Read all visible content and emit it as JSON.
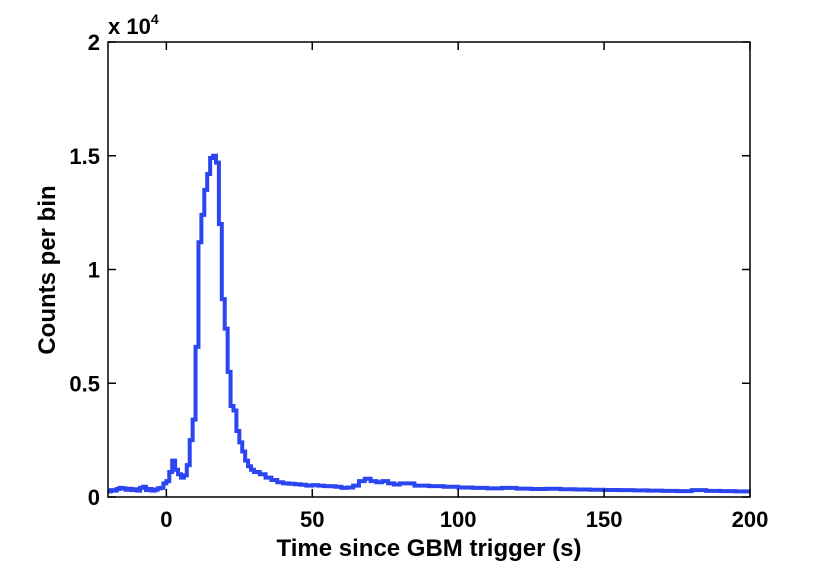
{
  "chart_data": {
    "type": "line",
    "style": "step",
    "xlabel": "Time since GBM trigger (s)",
    "ylabel": "Counts per bin",
    "xlim": [
      -20,
      200
    ],
    "ylim": [
      0,
      20000
    ],
    "x_ticks": [
      0,
      50,
      100,
      150,
      200
    ],
    "x_tick_labels": [
      "0",
      "50",
      "100",
      "150",
      "200"
    ],
    "y_ticks": [
      0,
      5000,
      10000,
      15000,
      20000
    ],
    "y_tick_labels": [
      "0",
      "0.5",
      "1",
      "1.5",
      "2"
    ],
    "y_multiplier": {
      "base": "x 10",
      "exponent": "4"
    },
    "grid": false,
    "series": [
      {
        "color": "#2b45f0",
        "x": [
          -20,
          -19,
          -18,
          -17,
          -16,
          -15,
          -14,
          -13,
          -12,
          -11,
          -10,
          -9,
          -8,
          -7,
          -6,
          -5,
          -4,
          -3,
          -2,
          -1,
          0,
          1,
          2,
          3,
          4,
          5,
          6,
          7,
          8,
          9,
          10,
          11,
          12,
          13,
          14,
          15,
          16,
          17,
          18,
          19,
          20,
          21,
          22,
          23,
          24,
          25,
          26,
          27,
          28,
          29,
          30,
          32,
          34,
          36,
          38,
          40,
          42,
          44,
          46,
          48,
          50,
          52,
          54,
          56,
          58,
          60,
          62,
          64,
          66,
          68,
          70,
          72,
          74,
          76,
          78,
          80,
          85,
          90,
          95,
          100,
          105,
          110,
          115,
          120,
          125,
          130,
          135,
          140,
          145,
          150,
          155,
          160,
          165,
          170,
          175,
          180,
          185,
          190,
          195,
          200
        ],
        "y": [
          250,
          300,
          280,
          350,
          400,
          380,
          320,
          360,
          300,
          340,
          280,
          400,
          450,
          300,
          350,
          280,
          320,
          380,
          400,
          600,
          700,
          1100,
          1600,
          1200,
          1000,
          850,
          950,
          1400,
          2500,
          3400,
          6600,
          11200,
          12400,
          13500,
          14200,
          14900,
          15000,
          14700,
          12000,
          8700,
          7400,
          5500,
          4000,
          3800,
          2900,
          2400,
          2000,
          1600,
          1350,
          1200,
          1100,
          1000,
          850,
          750,
          650,
          600,
          580,
          560,
          540,
          500,
          520,
          500,
          480,
          470,
          450,
          400,
          420,
          500,
          700,
          800,
          700,
          650,
          700,
          600,
          550,
          600,
          500,
          480,
          450,
          420,
          400,
          380,
          400,
          370,
          350,
          360,
          340,
          330,
          320,
          310,
          300,
          290,
          280,
          270,
          260,
          300,
          270,
          260,
          250,
          240
        ]
      }
    ]
  }
}
